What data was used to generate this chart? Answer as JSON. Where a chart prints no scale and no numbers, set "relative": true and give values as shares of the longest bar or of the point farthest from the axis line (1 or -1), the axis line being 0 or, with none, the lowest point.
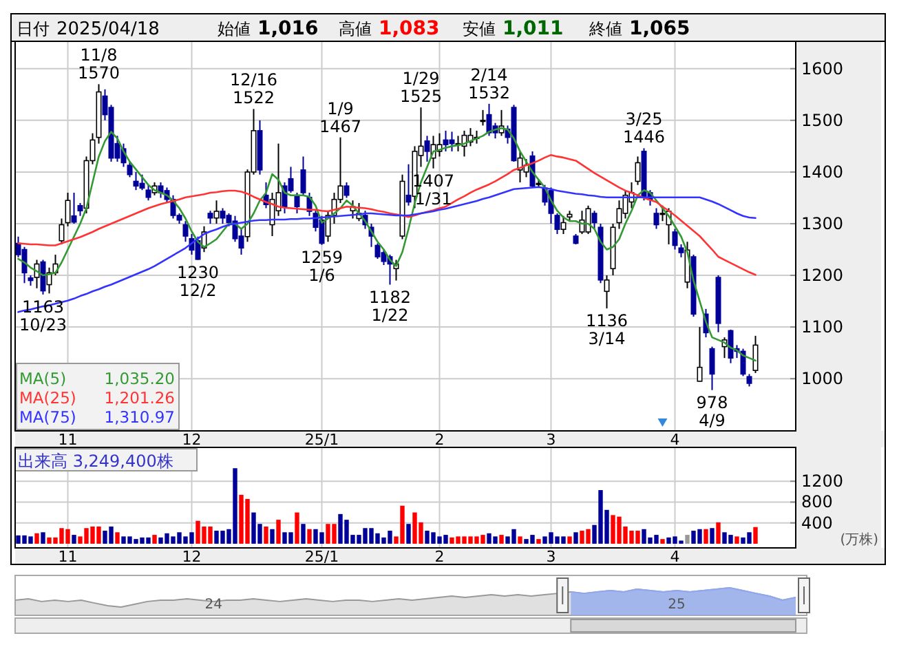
{
  "chart_data": [
    {
      "type": "other",
      "annotations": [
        "日付 2025/04/18",
        "始値 1,016",
        "高値 1,083",
        "安値 1,011",
        "終値 1,065"
      ]
    },
    {
      "type": "candlestick",
      "categories": [
        null,
        null,
        null,
        null,
        null,
        null,
        null,
        null,
        "11",
        null,
        null,
        null,
        null,
        null,
        null,
        null,
        null,
        null,
        null,
        null,
        null,
        null,
        null,
        null,
        null,
        null,
        null,
        null,
        "12",
        null,
        null,
        null,
        null,
        null,
        null,
        null,
        null,
        null,
        null,
        null,
        null,
        null,
        null,
        null,
        null,
        null,
        null,
        null,
        null,
        "25/1",
        null,
        null,
        null,
        null,
        null,
        null,
        null,
        null,
        null,
        null,
        null,
        null,
        null,
        null,
        null,
        null,
        null,
        null,
        "2",
        null,
        null,
        null,
        null,
        null,
        null,
        null,
        null,
        null,
        null,
        null,
        null,
        null,
        null,
        null,
        null,
        null,
        "3",
        null,
        null,
        null,
        null,
        null,
        null,
        null,
        null,
        null,
        null,
        null,
        null,
        null,
        null,
        null,
        null,
        null,
        null,
        null,
        "4",
        null,
        null,
        null,
        null,
        null,
        null,
        null,
        null,
        null,
        null,
        null,
        null,
        null
      ],
      "ohlc": [
        [
          1262,
          1275,
          1235,
          1240
        ],
        [
          1250,
          1255,
          1185,
          1205
        ],
        [
          1195,
          1200,
          1180,
          1190
        ],
        [
          1196,
          1230,
          1175,
          1222
        ],
        [
          1226,
          1230,
          1163,
          1170
        ],
        [
          1182,
          1215,
          1165,
          1205
        ],
        [
          1205,
          1240,
          1200,
          1222
        ],
        [
          1267,
          1310,
          1260,
          1298
        ],
        [
          1302,
          1360,
          1295,
          1345
        ],
        [
          1315,
          1360,
          1300,
          1303
        ],
        [
          1335,
          1340,
          1315,
          1325
        ],
        [
          1330,
          1430,
          1320,
          1422
        ],
        [
          1422,
          1475,
          1415,
          1462
        ],
        [
          1467,
          1570,
          1455,
          1555
        ],
        [
          1547,
          1560,
          1500,
          1511
        ],
        [
          1525,
          1530,
          1420,
          1427
        ],
        [
          1455,
          1470,
          1420,
          1427
        ],
        [
          1445,
          1455,
          1410,
          1418
        ],
        [
          1413,
          1420,
          1390,
          1395
        ],
        [
          1382,
          1400,
          1365,
          1373
        ],
        [
          1378,
          1395,
          1365,
          1369
        ],
        [
          1365,
          1375,
          1345,
          1351
        ],
        [
          1360,
          1380,
          1355,
          1373
        ],
        [
          1373,
          1380,
          1350,
          1360
        ],
        [
          1364,
          1370,
          1340,
          1347
        ],
        [
          1347,
          1355,
          1310,
          1316
        ],
        [
          1316,
          1320,
          1300,
          1307
        ],
        [
          1298,
          1305,
          1265,
          1276
        ],
        [
          1271,
          1280,
          1240,
          1249
        ],
        [
          1267,
          1275,
          1230,
          1231
        ],
        [
          1253,
          1295,
          1245,
          1284
        ],
        [
          1320,
          1325,
          1300,
          1311
        ],
        [
          1311,
          1345,
          1300,
          1324
        ],
        [
          1324,
          1330,
          1300,
          1311
        ],
        [
          1316,
          1320,
          1295,
          1302
        ],
        [
          1305,
          1315,
          1265,
          1271
        ],
        [
          1276,
          1290,
          1240,
          1253
        ],
        [
          1275,
          1405,
          1265,
          1400
        ],
        [
          1400,
          1522,
          1395,
          1480
        ],
        [
          1480,
          1500,
          1395,
          1404
        ],
        [
          1355,
          1380,
          1330,
          1337
        ],
        [
          1298,
          1360,
          1276,
          1347
        ],
        [
          1325,
          1455,
          1315,
          1360
        ],
        [
          1373,
          1380,
          1320,
          1333
        ],
        [
          1387,
          1410,
          1360,
          1364
        ],
        [
          1355,
          1360,
          1320,
          1333
        ],
        [
          1404,
          1430,
          1355,
          1360
        ],
        [
          1351,
          1360,
          1315,
          1324
        ],
        [
          1320,
          1325,
          1285,
          1293
        ],
        [
          1307,
          1315,
          1259,
          1262
        ],
        [
          1276,
          1325,
          1265,
          1316
        ],
        [
          1316,
          1360,
          1300,
          1347
        ],
        [
          1347,
          1467,
          1340,
          1373
        ],
        [
          1373,
          1380,
          1350,
          1355
        ],
        [
          1325,
          1345,
          1310,
          1333
        ],
        [
          1310,
          1340,
          1305,
          1320
        ],
        [
          1316,
          1325,
          1290,
          1298
        ],
        [
          1293,
          1300,
          1255,
          1276
        ],
        [
          1258,
          1262,
          1232,
          1236
        ],
        [
          1244,
          1250,
          1220,
          1227
        ],
        [
          1236,
          1240,
          1182,
          1222
        ],
        [
          1213,
          1230,
          1190,
          1222
        ],
        [
          1276,
          1395,
          1270,
          1382
        ],
        [
          1355,
          1415,
          1335,
          1342
        ],
        [
          1353,
          1450,
          1330,
          1440
        ],
        [
          1432,
          1525,
          1410,
          1450
        ],
        [
          1460,
          1470,
          1420,
          1440
        ],
        [
          1427,
          1470,
          1407,
          1453
        ],
        [
          1440,
          1475,
          1430,
          1453
        ],
        [
          1462,
          1480,
          1440,
          1453
        ],
        [
          1462,
          1478,
          1440,
          1455
        ],
        [
          1455,
          1470,
          1440,
          1455
        ],
        [
          1450,
          1480,
          1430,
          1471
        ],
        [
          1458,
          1485,
          1450,
          1471
        ],
        [
          1467,
          1480,
          1455,
          1467
        ],
        [
          1500,
          1520,
          1490,
          1500
        ],
        [
          1511,
          1532,
          1470,
          1476
        ],
        [
          1489,
          1495,
          1465,
          1476
        ],
        [
          1476,
          1520,
          1470,
          1489
        ],
        [
          1483,
          1490,
          1455,
          1467
        ],
        [
          1525,
          1530,
          1420,
          1422
        ],
        [
          1404,
          1440,
          1380,
          1427
        ],
        [
          1400,
          1425,
          1390,
          1413
        ],
        [
          1431,
          1440,
          1370,
          1373
        ],
        [
          1378,
          1385,
          1370,
          1378
        ],
        [
          1369,
          1375,
          1335,
          1342
        ],
        [
          1364,
          1370,
          1300,
          1320
        ],
        [
          1316,
          1320,
          1280,
          1289
        ],
        [
          1289,
          1315,
          1280,
          1302
        ],
        [
          1313,
          1325,
          1305,
          1318
        ],
        [
          1276,
          1280,
          1260,
          1262
        ],
        [
          1284,
          1325,
          1280,
          1307
        ],
        [
          1284,
          1335,
          1280,
          1329
        ],
        [
          1320,
          1325,
          1290,
          1302
        ],
        [
          1293,
          1300,
          1185,
          1191
        ],
        [
          1169,
          1200,
          1136,
          1191
        ],
        [
          1213,
          1300,
          1200,
          1293
        ],
        [
          1302,
          1345,
          1290,
          1329
        ],
        [
          1320,
          1365,
          1310,
          1355
        ],
        [
          1342,
          1380,
          1330,
          1360
        ],
        [
          1382,
          1430,
          1375,
          1418
        ],
        [
          1440,
          1446,
          1345,
          1351
        ],
        [
          1360,
          1365,
          1335,
          1347
        ],
        [
          1320,
          1330,
          1290,
          1298
        ],
        [
          1318,
          1335,
          1305,
          1320
        ],
        [
          1298,
          1330,
          1260,
          1324
        ],
        [
          1284,
          1290,
          1250,
          1258
        ],
        [
          1253,
          1260,
          1235,
          1244
        ],
        [
          1187,
          1265,
          1175,
          1249
        ],
        [
          1236,
          1240,
          1120,
          1125
        ],
        [
          995,
          1100,
          995,
          1022
        ],
        [
          1125,
          1135,
          1080,
          1089
        ],
        [
          1058,
          1062,
          978,
          1009
        ],
        [
          1196,
          1200,
          1090,
          1107
        ],
        [
          1062,
          1080,
          1040,
          1075
        ],
        [
          1093,
          1095,
          1030,
          1040
        ],
        [
          1058,
          1065,
          1040,
          1053
        ],
        [
          1053,
          1058,
          1005,
          1009
        ],
        [
          1004,
          1009,
          985,
          991
        ],
        [
          1016,
          1083,
          1011,
          1065
        ]
      ],
      "series": [
        {
          "name": "MA(5) 1,035.20",
          "type": "line",
          "color": "#339933",
          "values": [
            1232,
            1225,
            1215,
            1208,
            1200,
            1202,
            1205,
            1225,
            1250,
            1275,
            1300,
            1330,
            1380,
            1430,
            1460,
            1478,
            1465,
            1440,
            1420,
            1405,
            1390,
            1375,
            1365,
            1360,
            1355,
            1345,
            1330,
            1310,
            1285,
            1265,
            1255,
            1262,
            1270,
            1285,
            1300,
            1300,
            1290,
            1300,
            1320,
            1345,
            1360,
            1396,
            1385,
            1360,
            1355,
            1355,
            1355,
            1352,
            1335,
            1302,
            1310,
            1320,
            1330,
            1345,
            1335,
            1320,
            1305,
            1285,
            1265,
            1250,
            1230,
            1218,
            1245,
            1290,
            1340,
            1380,
            1410,
            1440,
            1443,
            1447,
            1450,
            1452,
            1455,
            1460,
            1465,
            1470,
            1478,
            1482,
            1485,
            1482,
            1465,
            1440,
            1420,
            1400,
            1385,
            1370,
            1345,
            1325,
            1312,
            1305,
            1305,
            1300,
            1300,
            1290,
            1265,
            1250,
            1255,
            1270,
            1300,
            1325,
            1355,
            1365,
            1360,
            1345,
            1330,
            1315,
            1295,
            1275,
            1245,
            1190,
            1150,
            1110,
            1080,
            1075,
            1070,
            1060,
            1055,
            1045,
            1040,
            1035
          ]
        },
        {
          "name": "MA(25) 1,201.26",
          "type": "line",
          "color": "#ff3333",
          "values": [
            1262,
            1261,
            1260,
            1260,
            1259,
            1258,
            1258,
            1262,
            1266,
            1270,
            1274,
            1279,
            1284,
            1290,
            1295,
            1300,
            1305,
            1310,
            1315,
            1320,
            1325,
            1330,
            1334,
            1338,
            1341,
            1344,
            1347,
            1351,
            1353,
            1355,
            1357,
            1360,
            1361,
            1363,
            1364,
            1364,
            1362,
            1358,
            1352,
            1347,
            1342,
            1338,
            1333,
            1331,
            1330,
            1329,
            1328,
            1327,
            1327,
            1325,
            1324,
            1327,
            1330,
            1333,
            1332,
            1331,
            1330,
            1328,
            1325,
            1323,
            1320,
            1318,
            1316,
            1313,
            1316,
            1320,
            1323,
            1326,
            1330,
            1333,
            1340,
            1347,
            1353,
            1360,
            1366,
            1371,
            1376,
            1382,
            1389,
            1396,
            1404,
            1408,
            1413,
            1417,
            1422,
            1428,
            1433,
            1430,
            1428,
            1425,
            1422,
            1414,
            1406,
            1398,
            1391,
            1384,
            1377,
            1370,
            1364,
            1360,
            1355,
            1350,
            1346,
            1342,
            1333,
            1325,
            1316,
            1306,
            1296,
            1286,
            1276,
            1263,
            1250,
            1236,
            1230,
            1224,
            1218,
            1212,
            1206,
            1201
          ]
        },
        {
          "name": "MA(75) 1,310.97",
          "type": "line",
          "color": "#3333ff",
          "values": [
            1129,
            1132,
            1134,
            1137,
            1140,
            1142,
            1145,
            1148,
            1151,
            1155,
            1160,
            1164,
            1169,
            1173,
            1178,
            1182,
            1187,
            1192,
            1197,
            1202,
            1207,
            1212,
            1218,
            1225,
            1232,
            1239,
            1246,
            1253,
            1262,
            1271,
            1280,
            1285,
            1289,
            1294,
            1298,
            1300,
            1302,
            1304,
            1306,
            1307,
            1307,
            1308,
            1308,
            1308,
            1309,
            1309,
            1310,
            1310,
            1311,
            1312,
            1313,
            1314,
            1315,
            1316,
            1317,
            1318,
            1320,
            1320,
            1319,
            1318,
            1317,
            1316,
            1316,
            1316,
            1318,
            1320,
            1322,
            1324,
            1327,
            1329,
            1332,
            1335,
            1338,
            1341,
            1344,
            1348,
            1351,
            1355,
            1359,
            1363,
            1367,
            1368,
            1369,
            1370,
            1371,
            1369,
            1367,
            1364,
            1362,
            1360,
            1358,
            1357,
            1355,
            1354,
            1352,
            1351,
            1351,
            1351,
            1351,
            1351,
            1351,
            1351,
            1351,
            1351,
            1351,
            1351,
            1351,
            1351,
            1351,
            1351,
            1351,
            1347,
            1343,
            1338,
            1332,
            1326,
            1320,
            1315,
            1312,
            1311
          ]
        }
      ],
      "ylim": [
        899,
        1653
      ],
      "yticks": [
        1000,
        1100,
        1200,
        1300,
        1400,
        1500,
        1600
      ],
      "grid": true,
      "annotations": [
        {
          "text": "11/8 1570",
          "y": 1570
        },
        {
          "text": "12/16 1522",
          "y": 1522
        },
        {
          "text": "1/9 1467",
          "y": 1467
        },
        {
          "text": "1/29 1525",
          "y": 1525
        },
        {
          "text": "2/14 1532",
          "y": 1532
        },
        {
          "text": "3/25 1446",
          "y": 1446
        },
        {
          "text": "1163 10/23",
          "y": 1163
        },
        {
          "text": "1230 12/2",
          "y": 1230
        },
        {
          "text": "1259 1/6",
          "y": 1259
        },
        {
          "text": "1182 1/22",
          "y": 1182
        },
        {
          "text": "1407 1/31",
          "y": 1407
        },
        {
          "text": "1136 3/14",
          "y": 1136
        },
        {
          "text": "978 4/9",
          "y": 978
        }
      ]
    },
    {
      "type": "bar",
      "title": "出来高 3,249,400株",
      "ylabel": "(万株)",
      "categories": [
        null,
        null,
        null,
        null,
        null,
        null,
        null,
        null,
        "11",
        null,
        null,
        null,
        null,
        null,
        null,
        null,
        null,
        null,
        null,
        null,
        null,
        null,
        null,
        null,
        null,
        null,
        null,
        null,
        "12",
        null,
        null,
        null,
        null,
        null,
        null,
        null,
        null,
        null,
        null,
        null,
        null,
        null,
        null,
        null,
        null,
        null,
        null,
        null,
        null,
        "25/1",
        null,
        null,
        null,
        null,
        null,
        null,
        null,
        null,
        null,
        null,
        null,
        null,
        null,
        null,
        null,
        null,
        null,
        null,
        "2",
        null,
        null,
        null,
        null,
        null,
        null,
        null,
        null,
        null,
        null,
        null,
        null,
        null,
        null,
        null,
        null,
        null,
        "3",
        null,
        null,
        null,
        null,
        null,
        null,
        null,
        null,
        null,
        null,
        null,
        null,
        null,
        null,
        null,
        null,
        null,
        null,
        null,
        "4",
        null,
        null,
        null,
        null,
        null,
        null,
        null,
        null,
        null,
        null,
        null,
        null,
        null
      ],
      "values": [
        160,
        160,
        140,
        200,
        220,
        120,
        120,
        300,
        280,
        170,
        140,
        300,
        330,
        330,
        250,
        330,
        220,
        140,
        140,
        90,
        120,
        120,
        170,
        120,
        200,
        140,
        220,
        140,
        220,
        440,
        330,
        330,
        250,
        250,
        280,
        1450,
        940,
        860,
        600,
        380,
        330,
        280,
        460,
        220,
        220,
        600,
        380,
        280,
        280,
        220,
        380,
        380,
        570,
        460,
        170,
        170,
        300,
        300,
        200,
        120,
        250,
        140,
        730,
        380,
        600,
        410,
        250,
        220,
        140,
        170,
        120,
        140,
        140,
        140,
        140,
        170,
        200,
        140,
        170,
        140,
        280,
        140,
        90,
        170,
        90,
        140,
        220,
        140,
        140,
        140,
        220,
        250,
        280,
        360,
        1030,
        650,
        550,
        520,
        330,
        250,
        250,
        280,
        120,
        170,
        90,
        120,
        140,
        60,
        170,
        250,
        280,
        280,
        300,
        410,
        220,
        170,
        140,
        120,
        220,
        320
      ],
      "colors": [
        "#000099",
        "#000099",
        "#000099",
        "#ff0000",
        "#000099",
        "#ff0000",
        "#ff0000",
        "#ff0000",
        "#ff0000",
        "#000099",
        "#ff0000",
        "#ff0000",
        "#ff0000",
        "#ff0000",
        "#000099",
        "#000099",
        "#ff0000",
        "#000099",
        "#000099",
        "#000099",
        "#000099",
        "#000099",
        "#ff0000",
        "#000099",
        "#000099",
        "#000099",
        "#000099",
        "#000099",
        "#000099",
        "#ff0000",
        "#ff0000",
        "#ff0000",
        "#000099",
        "#000099",
        "#000099",
        "#000099",
        "#ff0000",
        "#ff0000",
        "#000099",
        "#000099",
        "#ff0000",
        "#000099",
        "#ff0000",
        "#000099",
        "#000099",
        "#ff0000",
        "#000099",
        "#ff0000",
        "#000099",
        "#000099",
        "#ff0000",
        "#ff0000",
        "#000099",
        "#000099",
        "#000099",
        "#000099",
        "#000099",
        "#000099",
        "#000099",
        "#000099",
        "#000099",
        "#ff0000",
        "#ff0000",
        "#000099",
        "#ff0000",
        "#ff0000",
        "#000099",
        "#000099",
        "#000099",
        "#000099",
        "#ff0000",
        "#ff0000",
        "#ff0000",
        "#ff0000",
        "#ff0000",
        "#ff0000",
        "#000099",
        "#000099",
        "#ff0000",
        "#000099",
        "#000099",
        "#ff0000",
        "#000099",
        "#000099",
        "#ff0000",
        "#000099",
        "#000099",
        "#000099",
        "#000099",
        "#ff0000",
        "#000099",
        "#ff0000",
        "#ff0000",
        "#000099",
        "#000099",
        "#000099",
        "#ff0000",
        "#ff0000",
        "#ff0000",
        "#ff0000",
        "#ff0000",
        "#000099",
        "#000099",
        "#000099",
        "#ff0000",
        "#000099",
        "#000099",
        "#000099",
        "#999999",
        "#000099",
        "#000099",
        "#ff0000",
        "#000099",
        "#ff0000",
        "#000099",
        "#000099",
        "#ff0000",
        "#000099",
        "#000099",
        "#ff0000"
      ],
      "ylim": [
        -80,
        1850
      ],
      "yticks": [
        400,
        800,
        1200
      ],
      "grid": true
    },
    {
      "type": "area",
      "relative": true,
      "categories": [
        null,
        null,
        null,
        null,
        null,
        null,
        null,
        null,
        null,
        null,
        null,
        null,
        null,
        null,
        null,
        "24",
        null,
        null,
        null,
        null,
        null,
        null,
        null,
        null,
        null,
        null,
        null,
        null,
        null,
        null,
        null,
        null,
        null,
        null,
        null,
        null,
        null,
        null,
        null,
        null,
        null,
        null,
        null,
        null,
        null,
        null,
        null,
        null,
        null,
        null,
        "25",
        null,
        null,
        null,
        null,
        null,
        null,
        null,
        null,
        null
      ],
      "series": [
        {
          "color": "#999999",
          "values": [
            0.36,
            0.43,
            0.29,
            0.36,
            0.29,
            0.36,
            0.21,
            0.07,
            0,
            0.14,
            0.29,
            0.36,
            0.36,
            0.43,
            0.36,
            0.29,
            0.36,
            0.36,
            0.43,
            0.36,
            0.29,
            0.36,
            0.43,
            0.36,
            0.29,
            0.36,
            0.36,
            0.29,
            0.36,
            0.43,
            0.36,
            0.43,
            0.5,
            0.57,
            0.5,
            0.57,
            0.64,
            0.57,
            0.64,
            0.57,
            0.64,
            0.71,
            0.79,
            0.71,
            0.79,
            0.86,
            0.79,
            0.93,
            0.86,
            0.79,
            0.86,
            0.79,
            0.86,
            0.93,
            1,
            0.86,
            0.71,
            0.57,
            0.36,
            0.5
          ]
        },
        {
          "color": "#8fa8f0",
          "values": [
            null,
            null,
            null,
            null,
            null,
            null,
            null,
            null,
            null,
            null,
            null,
            null,
            null,
            null,
            null,
            null,
            null,
            null,
            null,
            null,
            null,
            null,
            null,
            null,
            null,
            null,
            null,
            null,
            null,
            null,
            null,
            null,
            null,
            null,
            null,
            null,
            null,
            null,
            null,
            null,
            null,
            null,
            0.79,
            0.71,
            0.79,
            0.86,
            0.79,
            0.93,
            0.86,
            0.79,
            0.86,
            0.79,
            0.86,
            0.93,
            1,
            0.86,
            0.71,
            0.57,
            0.36,
            0.5
          ]
        }
      ]
    }
  ]
}
